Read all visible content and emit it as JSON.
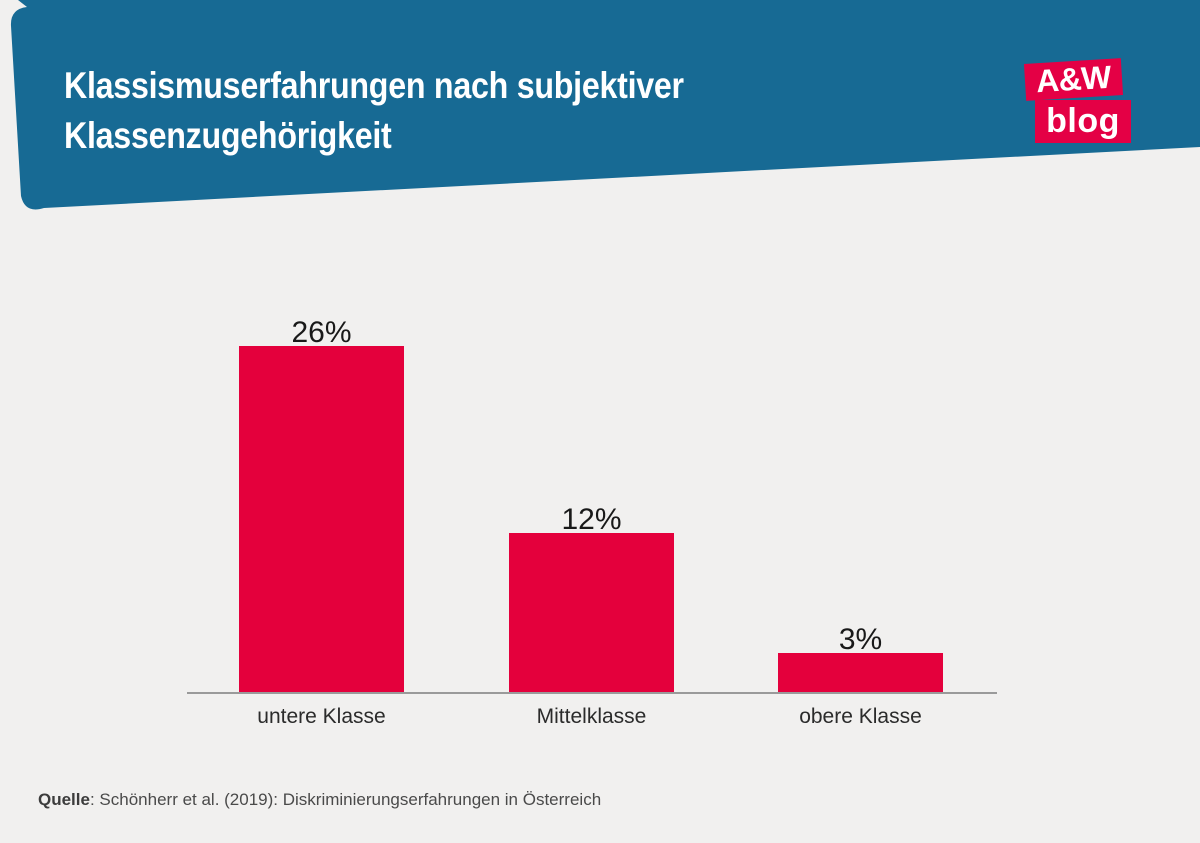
{
  "header": {
    "title_line1": "Klassismuserfahrungen nach subjektiver",
    "title_line2": "Klassenzugehörigkeit"
  },
  "logo": {
    "top": "A&W",
    "bottom": "blog"
  },
  "chart_data": {
    "type": "bar",
    "title": "Klassismuserfahrungen nach subjektiver Klassenzugehörigkeit",
    "categories": [
      "untere Klasse",
      "Mittelklasse",
      "obere Klasse"
    ],
    "values": [
      26,
      12,
      3
    ],
    "value_labels": [
      "26%",
      "12%",
      "3%"
    ],
    "unit": "%",
    "xlabel": "",
    "ylabel": "",
    "ylim": [
      0,
      30
    ],
    "grid": false,
    "legend": false,
    "bar_color": "#e4003c"
  },
  "footer": {
    "label": "Quelle",
    "text": ": Schönherr et al. (2019): Diskriminierungserfahrungen in Österreich"
  },
  "colors": {
    "banner_blue": "#176a94",
    "bar_red": "#e4003c",
    "logo_red": "#e40045",
    "background": "#f1f0ef",
    "axis_gray": "#9a9a9a"
  }
}
